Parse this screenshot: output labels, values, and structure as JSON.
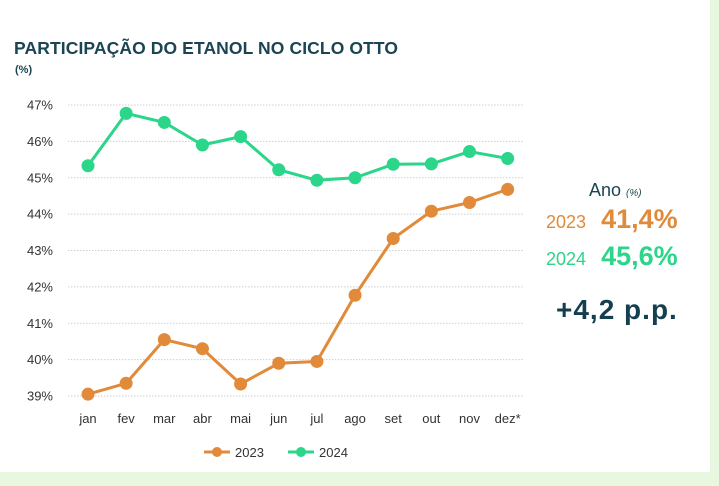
{
  "header": {
    "title": "PARTICIPAÇÃO DO ETANOL NO CICLO OTTO",
    "unit": "(%)"
  },
  "summary": {
    "label": "Ano",
    "label_unit": "(%)",
    "rows": [
      {
        "year": "2023",
        "value": "41,4%"
      },
      {
        "year": "2024",
        "value": "45,6%"
      }
    ],
    "difference": "+4,2 p.p."
  },
  "chart_data": {
    "type": "line",
    "title": "PARTICIPAÇÃO DO ETANOL NO CICLO OTTO",
    "ylabel": "(%)",
    "categories": [
      "jan",
      "fev",
      "mar",
      "abr",
      "mai",
      "jun",
      "jul",
      "ago",
      "set",
      "out",
      "nov",
      "dez*"
    ],
    "ylim": [
      39,
      47
    ],
    "yticks": [
      39,
      40,
      41,
      42,
      43,
      44,
      45,
      46,
      47
    ],
    "ytick_labels": [
      "39%",
      "40%",
      "41%",
      "42%",
      "43%",
      "44%",
      "45%",
      "46%",
      "47%"
    ],
    "grid": true,
    "legend": "bottom",
    "series": [
      {
        "name": "2023",
        "color": "#e08a3a",
        "values": [
          39.05,
          39.35,
          40.55,
          40.3,
          39.33,
          39.9,
          39.95,
          41.77,
          43.33,
          44.08,
          44.32,
          44.68
        ]
      },
      {
        "name": "2024",
        "color": "#2bd58a",
        "values": [
          45.33,
          46.77,
          46.52,
          45.9,
          46.13,
          45.22,
          44.93,
          45.0,
          45.37,
          45.38,
          45.72,
          45.53
        ]
      }
    ]
  }
}
